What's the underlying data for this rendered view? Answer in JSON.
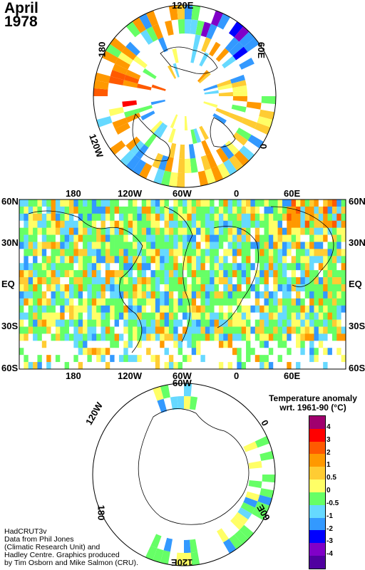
{
  "title": {
    "month": "April",
    "year": "1978"
  },
  "north_polar": {
    "labels": {
      "top": "120E",
      "upper_left": "180",
      "upper_right": "60E",
      "lower_left": "120W",
      "right": "0"
    }
  },
  "world_map": {
    "lat_labels": [
      "60N",
      "30N",
      "EQ",
      "30S",
      "60S"
    ],
    "lon_labels": [
      "180",
      "120W",
      "60W",
      "0",
      "60E"
    ]
  },
  "south_polar": {
    "labels": {
      "upper_left": "120W",
      "top": "60W",
      "right": "0",
      "lower_left": "180",
      "lower_right": "60E",
      "bottom": "120E"
    }
  },
  "legend": {
    "title_line1": "Temperature anomaly",
    "title_line2": "wrt. 1961-90  (°C)",
    "labels": [
      "4",
      "3",
      "2",
      "1",
      "0.5",
      "0",
      "-0.5",
      "-1",
      "-2",
      "-3",
      "-4"
    ],
    "colors": [
      "#a0006e",
      "#ff0000",
      "#ff5a00",
      "#ff9900",
      "#ffcc33",
      "#ffff66",
      "#66ff66",
      "#66d9ff",
      "#3399ff",
      "#0000ff",
      "#8000c8",
      "#5000a0"
    ]
  },
  "credit": [
    "HadCRUT3v",
    "Data from Phil Jones",
    "(Climatic Research Unit) and",
    "Hadley Centre.  Graphics produced",
    "by Tim Osborn and Mike Salmon (CRU)."
  ]
}
